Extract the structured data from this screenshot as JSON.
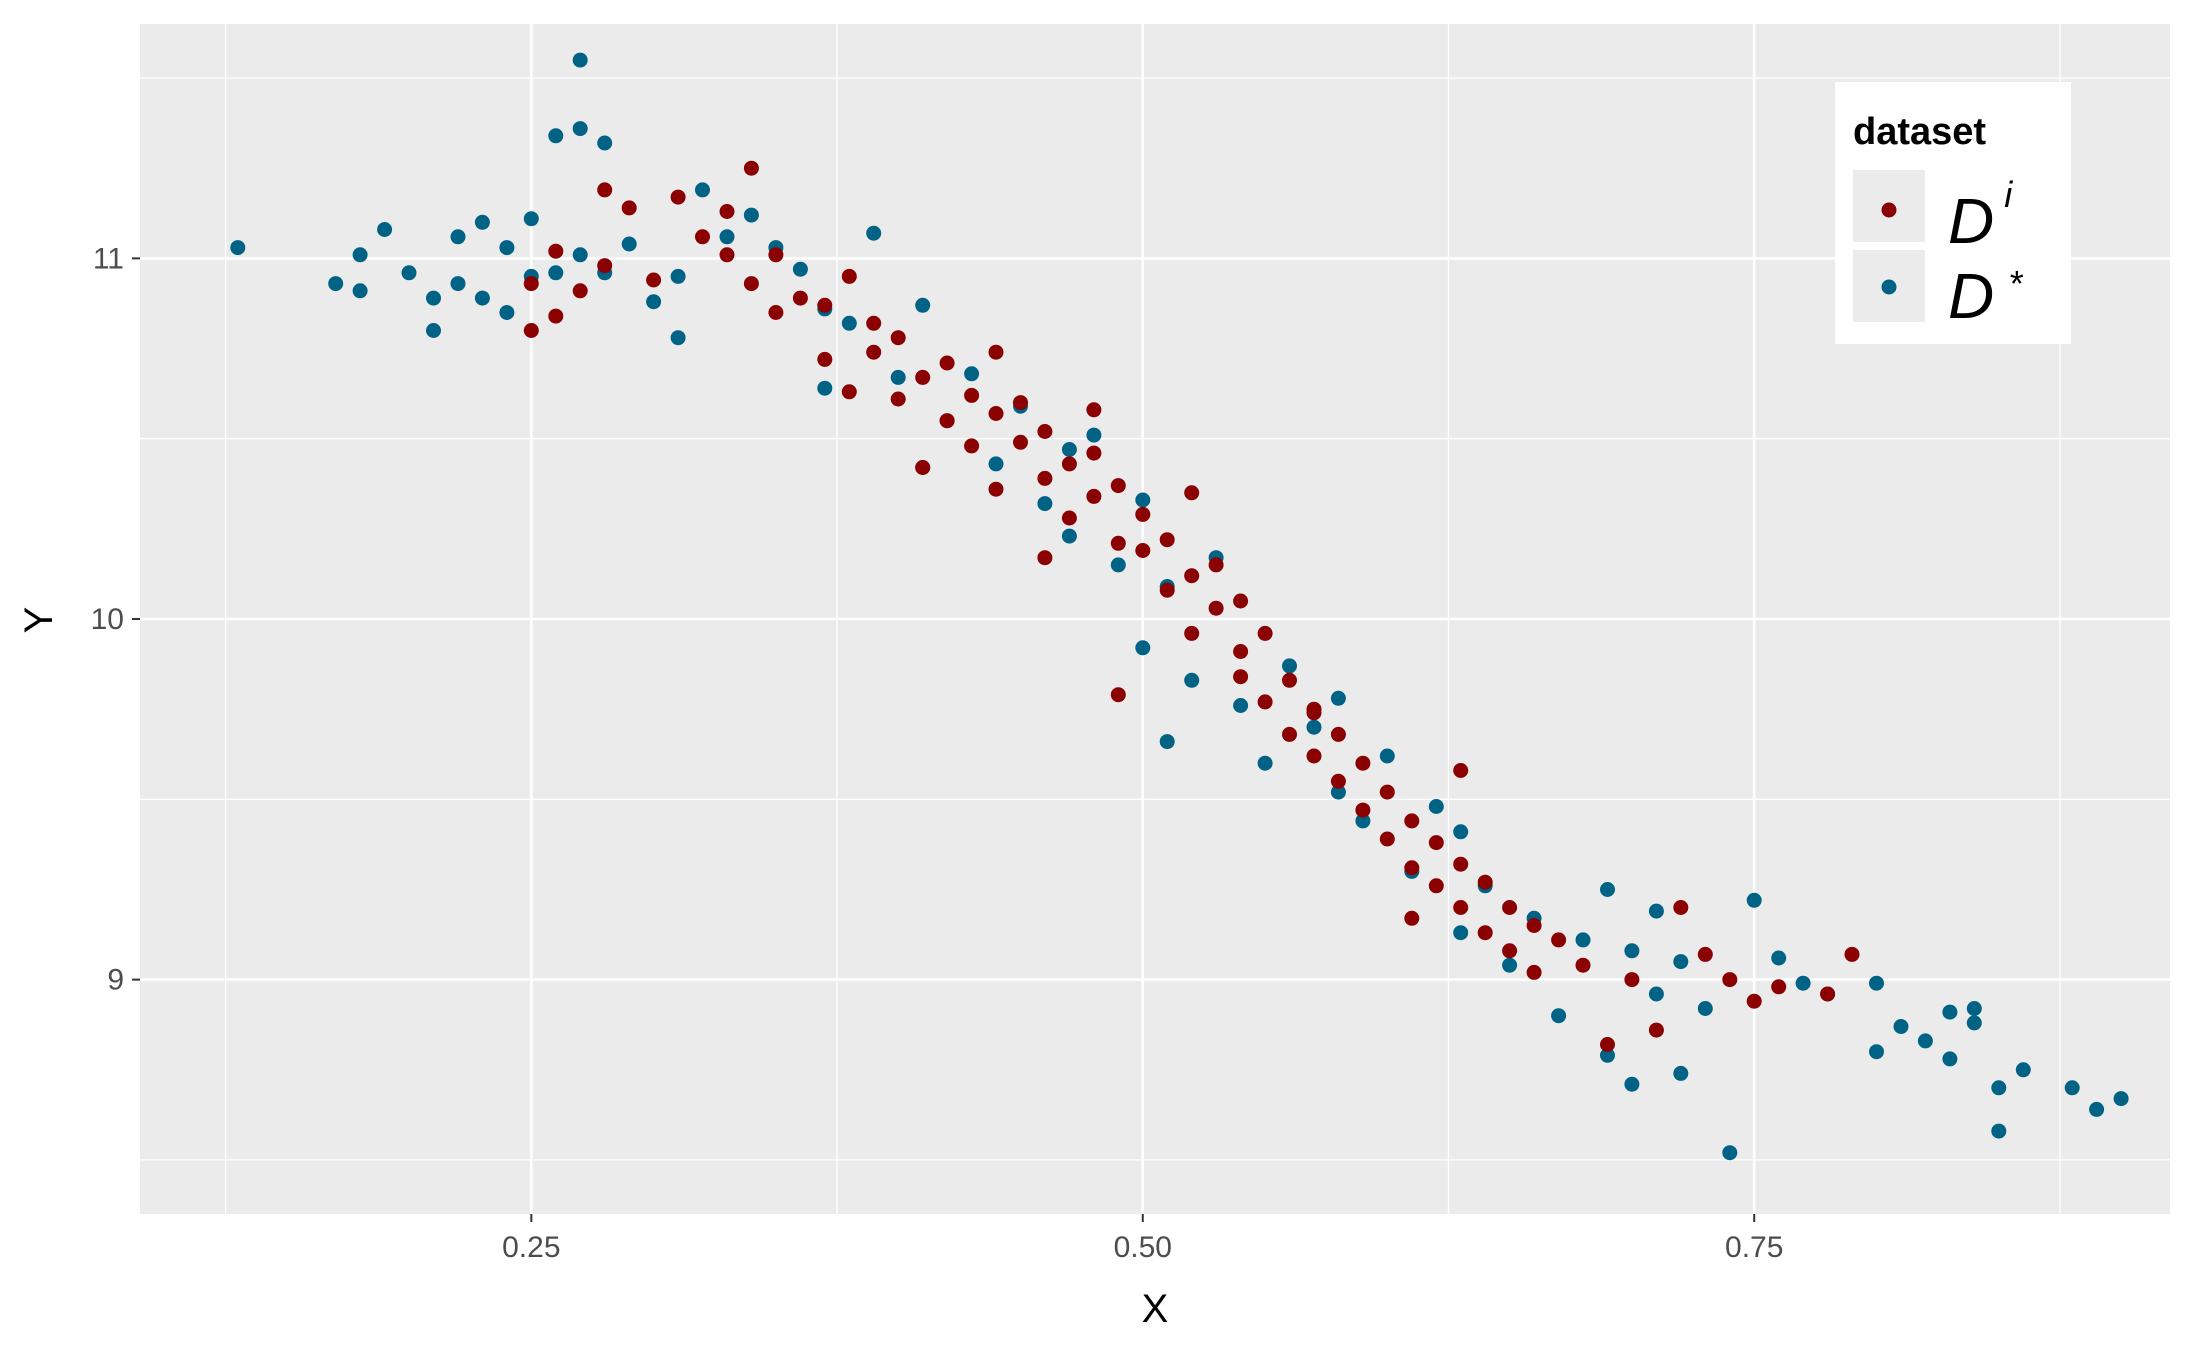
{
  "chart_data": {
    "type": "scatter",
    "title": "",
    "xlabel": "X",
    "ylabel": "Y",
    "xlim": [
      0.09,
      0.92
    ],
    "ylim": [
      8.35,
      11.65
    ],
    "x_ticks": [
      0.25,
      0.5,
      0.75
    ],
    "x_tick_labels": [
      "0.25",
      "0.50",
      "0.75"
    ],
    "y_ticks": [
      9,
      10,
      11
    ],
    "y_tick_labels": [
      "9",
      "10",
      "11"
    ],
    "grid": true,
    "background": "#ebebeb",
    "legend": {
      "title": "dataset",
      "placement": "top-right",
      "entries": [
        {
          "label": "D",
          "superscript": "i",
          "color": "#8b0000"
        },
        {
          "label": "D",
          "superscript": "*",
          "color": "#006385"
        }
      ]
    },
    "series": [
      {
        "name": "Di",
        "color": "#8b0000",
        "points": [
          [
            0.25,
            10.93
          ],
          [
            0.25,
            10.8
          ],
          [
            0.26,
            10.84
          ],
          [
            0.26,
            11.02
          ],
          [
            0.27,
            10.91
          ],
          [
            0.28,
            10.98
          ],
          [
            0.28,
            11.19
          ],
          [
            0.29,
            11.14
          ],
          [
            0.3,
            10.94
          ],
          [
            0.31,
            11.17
          ],
          [
            0.32,
            11.06
          ],
          [
            0.33,
            11.01
          ],
          [
            0.33,
            11.13
          ],
          [
            0.34,
            11.25
          ],
          [
            0.34,
            10.93
          ],
          [
            0.35,
            10.85
          ],
          [
            0.35,
            11.01
          ],
          [
            0.36,
            10.89
          ],
          [
            0.37,
            10.72
          ],
          [
            0.37,
            10.87
          ],
          [
            0.38,
            10.95
          ],
          [
            0.38,
            10.63
          ],
          [
            0.39,
            10.82
          ],
          [
            0.39,
            10.74
          ],
          [
            0.4,
            10.61
          ],
          [
            0.4,
            10.78
          ],
          [
            0.41,
            10.67
          ],
          [
            0.41,
            10.42
          ],
          [
            0.42,
            10.55
          ],
          [
            0.42,
            10.71
          ],
          [
            0.43,
            10.62
          ],
          [
            0.43,
            10.48
          ],
          [
            0.44,
            10.57
          ],
          [
            0.44,
            10.36
          ],
          [
            0.45,
            10.49
          ],
          [
            0.45,
            10.6
          ],
          [
            0.46,
            10.39
          ],
          [
            0.46,
            10.52
          ],
          [
            0.47,
            10.43
          ],
          [
            0.47,
            10.28
          ],
          [
            0.48,
            10.34
          ],
          [
            0.48,
            10.46
          ],
          [
            0.49,
            10.21
          ],
          [
            0.49,
            10.37
          ],
          [
            0.5,
            10.19
          ],
          [
            0.5,
            10.29
          ],
          [
            0.51,
            10.08
          ],
          [
            0.51,
            10.22
          ],
          [
            0.52,
            10.12
          ],
          [
            0.52,
            9.96
          ],
          [
            0.53,
            10.03
          ],
          [
            0.53,
            10.15
          ],
          [
            0.54,
            9.91
          ],
          [
            0.54,
            9.84
          ],
          [
            0.55,
            9.96
          ],
          [
            0.55,
            9.77
          ],
          [
            0.56,
            9.83
          ],
          [
            0.56,
            9.68
          ],
          [
            0.57,
            9.74
          ],
          [
            0.57,
            9.62
          ],
          [
            0.58,
            9.68
          ],
          [
            0.58,
            9.55
          ],
          [
            0.59,
            9.6
          ],
          [
            0.59,
            9.47
          ],
          [
            0.6,
            9.52
          ],
          [
            0.6,
            9.39
          ],
          [
            0.61,
            9.44
          ],
          [
            0.61,
            9.31
          ],
          [
            0.62,
            9.38
          ],
          [
            0.62,
            9.26
          ],
          [
            0.63,
            9.32
          ],
          [
            0.63,
            9.2
          ],
          [
            0.64,
            9.27
          ],
          [
            0.64,
            9.13
          ],
          [
            0.65,
            9.2
          ],
          [
            0.65,
            9.08
          ],
          [
            0.66,
            9.15
          ],
          [
            0.66,
            9.02
          ],
          [
            0.67,
            9.11
          ],
          [
            0.68,
            9.04
          ],
          [
            0.69,
            8.82
          ],
          [
            0.7,
            9.0
          ],
          [
            0.71,
            8.86
          ],
          [
            0.72,
            9.2
          ],
          [
            0.73,
            9.07
          ],
          [
            0.74,
            9.0
          ],
          [
            0.75,
            8.94
          ],
          [
            0.76,
            8.98
          ],
          [
            0.78,
            8.96
          ],
          [
            0.79,
            9.07
          ],
          [
            0.49,
            9.79
          ],
          [
            0.46,
            10.17
          ],
          [
            0.52,
            10.35
          ],
          [
            0.57,
            9.75
          ],
          [
            0.44,
            10.74
          ],
          [
            0.61,
            9.17
          ],
          [
            0.63,
            9.58
          ],
          [
            0.54,
            10.05
          ],
          [
            0.48,
            10.58
          ]
        ]
      },
      {
        "name": "D*",
        "color": "#006385",
        "points": [
          [
            0.13,
            11.03
          ],
          [
            0.17,
            10.93
          ],
          [
            0.18,
            10.91
          ],
          [
            0.18,
            11.01
          ],
          [
            0.19,
            11.08
          ],
          [
            0.2,
            10.96
          ],
          [
            0.21,
            10.8
          ],
          [
            0.21,
            10.89
          ],
          [
            0.22,
            11.06
          ],
          [
            0.22,
            10.93
          ],
          [
            0.23,
            11.1
          ],
          [
            0.23,
            10.89
          ],
          [
            0.24,
            10.85
          ],
          [
            0.24,
            11.03
          ],
          [
            0.25,
            10.95
          ],
          [
            0.25,
            11.11
          ],
          [
            0.26,
            11.34
          ],
          [
            0.26,
            10.96
          ],
          [
            0.27,
            11.55
          ],
          [
            0.27,
            11.36
          ],
          [
            0.27,
            11.01
          ],
          [
            0.28,
            11.32
          ],
          [
            0.28,
            10.96
          ],
          [
            0.29,
            11.04
          ],
          [
            0.3,
            10.88
          ],
          [
            0.31,
            10.95
          ],
          [
            0.31,
            10.78
          ],
          [
            0.32,
            11.19
          ],
          [
            0.33,
            11.06
          ],
          [
            0.34,
            11.12
          ],
          [
            0.35,
            11.03
          ],
          [
            0.36,
            10.97
          ],
          [
            0.37,
            10.86
          ],
          [
            0.37,
            10.64
          ],
          [
            0.38,
            10.82
          ],
          [
            0.39,
            11.07
          ],
          [
            0.4,
            10.67
          ],
          [
            0.41,
            10.42
          ],
          [
            0.41,
            10.87
          ],
          [
            0.42,
            10.55
          ],
          [
            0.43,
            10.68
          ],
          [
            0.44,
            10.43
          ],
          [
            0.45,
            10.59
          ],
          [
            0.46,
            10.32
          ],
          [
            0.47,
            10.47
          ],
          [
            0.47,
            10.23
          ],
          [
            0.48,
            10.51
          ],
          [
            0.49,
            10.15
          ],
          [
            0.5,
            10.33
          ],
          [
            0.5,
            9.92
          ],
          [
            0.51,
            10.09
          ],
          [
            0.51,
            9.66
          ],
          [
            0.52,
            9.83
          ],
          [
            0.53,
            10.17
          ],
          [
            0.54,
            9.76
          ],
          [
            0.55,
            9.6
          ],
          [
            0.56,
            9.87
          ],
          [
            0.57,
            9.7
          ],
          [
            0.58,
            9.52
          ],
          [
            0.58,
            9.78
          ],
          [
            0.59,
            9.44
          ],
          [
            0.6,
            9.62
          ],
          [
            0.61,
            9.3
          ],
          [
            0.62,
            9.48
          ],
          [
            0.63,
            9.13
          ],
          [
            0.63,
            9.41
          ],
          [
            0.64,
            9.26
          ],
          [
            0.65,
            9.04
          ],
          [
            0.66,
            9.17
          ],
          [
            0.67,
            8.9
          ],
          [
            0.68,
            9.11
          ],
          [
            0.69,
            8.79
          ],
          [
            0.69,
            9.25
          ],
          [
            0.7,
            9.08
          ],
          [
            0.7,
            8.71
          ],
          [
            0.71,
            8.96
          ],
          [
            0.71,
            9.19
          ],
          [
            0.72,
            8.74
          ],
          [
            0.72,
            9.05
          ],
          [
            0.73,
            8.92
          ],
          [
            0.74,
            8.52
          ],
          [
            0.75,
            9.22
          ],
          [
            0.76,
            9.06
          ],
          [
            0.77,
            8.99
          ],
          [
            0.78,
            8.96
          ],
          [
            0.8,
            8.99
          ],
          [
            0.8,
            8.8
          ],
          [
            0.81,
            8.87
          ],
          [
            0.82,
            8.83
          ],
          [
            0.83,
            8.78
          ],
          [
            0.84,
            8.88
          ],
          [
            0.85,
            8.7
          ],
          [
            0.85,
            8.58
          ],
          [
            0.86,
            8.75
          ],
          [
            0.88,
            8.7
          ],
          [
            0.89,
            8.64
          ],
          [
            0.9,
            8.67
          ],
          [
            0.83,
            8.91
          ],
          [
            0.84,
            8.92
          ]
        ]
      }
    ]
  }
}
